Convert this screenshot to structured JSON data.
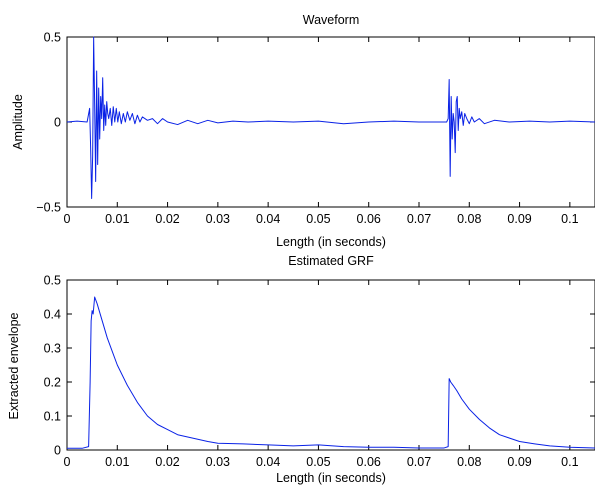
{
  "figure": {
    "background": "#ffffff",
    "line_color": "#0a22e6"
  },
  "chart_data": [
    {
      "type": "line",
      "title": "Waveform",
      "xlabel": "Length (in seconds)",
      "ylabel": "Amplitude",
      "xlim": [
        0,
        0.105
      ],
      "ylim": [
        -0.5,
        0.5
      ],
      "xticks": [
        "0",
        "0.01",
        "0.02",
        "0.03",
        "0.04",
        "0.05",
        "0.06",
        "0.07",
        "0.08",
        "0.09",
        "0.1"
      ],
      "yticks": [
        "−0.5",
        "0",
        "0.5"
      ],
      "grid": false,
      "series": [
        {
          "color": "#0a22e6",
          "x": [
            0,
            0.002,
            0.004,
            0.0045,
            0.0047,
            0.0049,
            0.0051,
            0.0053,
            0.0055,
            0.0057,
            0.0059,
            0.0061,
            0.0063,
            0.0065,
            0.0067,
            0.0069,
            0.0071,
            0.0073,
            0.0075,
            0.0077,
            0.0079,
            0.0081,
            0.0083,
            0.0086,
            0.0089,
            0.0092,
            0.0095,
            0.0098,
            0.0101,
            0.0104,
            0.0108,
            0.0112,
            0.0116,
            0.012,
            0.0125,
            0.013,
            0.0135,
            0.014,
            0.0145,
            0.015,
            0.016,
            0.017,
            0.018,
            0.019,
            0.02,
            0.022,
            0.024,
            0.026,
            0.028,
            0.03,
            0.033,
            0.036,
            0.04,
            0.045,
            0.05,
            0.055,
            0.06,
            0.065,
            0.07,
            0.074,
            0.0755,
            0.0758,
            0.076,
            0.0762,
            0.0764,
            0.0766,
            0.0768,
            0.077,
            0.0772,
            0.0774,
            0.0776,
            0.0778,
            0.078,
            0.0782,
            0.0785,
            0.0788,
            0.0791,
            0.0795,
            0.08,
            0.0805,
            0.081,
            0.082,
            0.083,
            0.085,
            0.088,
            0.092,
            0.096,
            0.1,
            0.105
          ],
          "y": [
            0,
            0.005,
            0.0,
            0.08,
            -0.15,
            -0.45,
            -0.2,
            0.5,
            0.1,
            -0.35,
            0.3,
            -0.25,
            0.2,
            -0.1,
            0.15,
            0.02,
            0.26,
            -0.05,
            0.1,
            -0.02,
            0.12,
            0.05,
            0.02,
            0.08,
            -0.02,
            0.09,
            0.0,
            0.08,
            0.0,
            0.06,
            -0.01,
            0.05,
            0.0,
            0.06,
            0.01,
            0.05,
            -0.01,
            0.04,
            0.0,
            0.03,
            0.01,
            0.02,
            -0.01,
            0.02,
            0.0,
            -0.015,
            0.01,
            -0.01,
            0.01,
            -0.005,
            0.005,
            0.0,
            0.005,
            0.0,
            0.005,
            -0.01,
            0.0,
            0.005,
            0.0,
            0.0,
            0.0,
            0.02,
            0.25,
            -0.32,
            0.15,
            -0.1,
            0.05,
            0.0,
            -0.18,
            0.12,
            0.15,
            -0.05,
            0.08,
            0.02,
            0.06,
            -0.02,
            0.05,
            0.02,
            -0.01,
            0.03,
            0.0,
            0.02,
            -0.01,
            0.01,
            0.0,
            0.005,
            0.0,
            0.005,
            0.0
          ]
        }
      ]
    },
    {
      "type": "line",
      "title": "Estimated GRF",
      "xlabel": "Length (in seconds)",
      "ylabel": "Extracted envelope",
      "xlim": [
        0,
        0.105
      ],
      "ylim": [
        0,
        0.5
      ],
      "xticks": [
        "0",
        "0.01",
        "0.02",
        "0.03",
        "0.04",
        "0.05",
        "0.06",
        "0.07",
        "0.08",
        "0.09",
        "0.1"
      ],
      "yticks": [
        "0",
        "0.1",
        "0.2",
        "0.3",
        "0.4",
        "0.5"
      ],
      "grid": false,
      "series": [
        {
          "color": "#0a22e6",
          "x": [
            0,
            0.003,
            0.0043,
            0.0046,
            0.0048,
            0.005,
            0.0052,
            0.0055,
            0.006,
            0.007,
            0.008,
            0.009,
            0.01,
            0.012,
            0.014,
            0.016,
            0.018,
            0.02,
            0.022,
            0.025,
            0.028,
            0.03,
            0.035,
            0.04,
            0.045,
            0.05,
            0.055,
            0.06,
            0.065,
            0.07,
            0.075,
            0.0758,
            0.076,
            0.0763,
            0.0768,
            0.0775,
            0.0785,
            0.08,
            0.082,
            0.084,
            0.086,
            0.088,
            0.09,
            0.093,
            0.096,
            0.1,
            0.105
          ],
          "y": [
            0.005,
            0.005,
            0.01,
            0.2,
            0.38,
            0.41,
            0.4,
            0.45,
            0.43,
            0.38,
            0.33,
            0.29,
            0.25,
            0.19,
            0.14,
            0.1,
            0.075,
            0.06,
            0.045,
            0.035,
            0.025,
            0.02,
            0.018,
            0.015,
            0.012,
            0.015,
            0.01,
            0.008,
            0.008,
            0.006,
            0.006,
            0.01,
            0.21,
            0.2,
            0.19,
            0.175,
            0.15,
            0.12,
            0.09,
            0.065,
            0.045,
            0.035,
            0.025,
            0.018,
            0.012,
            0.008,
            0.006
          ]
        }
      ]
    }
  ]
}
